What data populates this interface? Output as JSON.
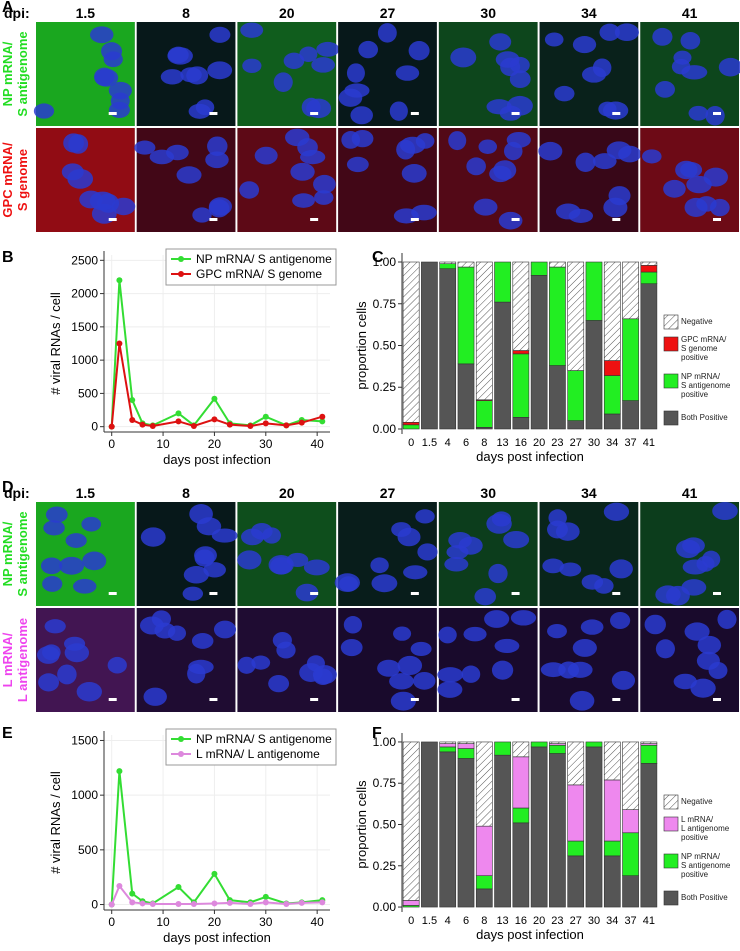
{
  "image_panels": [
    {
      "panel": "A",
      "dpi_label": "dpi:",
      "columns": [
        "1.5",
        "8",
        "20",
        "27",
        "30",
        "34",
        "41"
      ],
      "rows": [
        {
          "lines": [
            "NP mRNA/",
            "S antigenome"
          ],
          "color": "#22dd22"
        },
        {
          "lines": [
            "GPC mRNA/",
            "S genome"
          ],
          "color": "#ee1111"
        }
      ]
    },
    {
      "panel": "D",
      "dpi_label": "dpi:",
      "columns": [
        "1.5",
        "8",
        "20",
        "27",
        "30",
        "34",
        "41"
      ],
      "rows": [
        {
          "lines": [
            "NP mRNA/",
            "S antigenome"
          ],
          "color": "#22dd22"
        },
        {
          "lines": [
            "L mRNA/",
            "L antigenome"
          ],
          "color": "#ee44ee"
        }
      ]
    }
  ],
  "chart_data": [
    {
      "type": "line",
      "panel": "B",
      "xlabel": "days post infection",
      "ylabel": "# viral RNAs / cell",
      "x": [
        0,
        1.5,
        4,
        6,
        8,
        13,
        16,
        20,
        23,
        27,
        30,
        34,
        37,
        41
      ],
      "xlim": [
        -1.5,
        42.5
      ],
      "xticks": [
        0,
        10,
        20,
        30,
        40
      ],
      "ylim": [
        -80,
        2580
      ],
      "yticks": [
        0,
        500,
        1000,
        1500,
        2000,
        2500
      ],
      "grid": true,
      "legend": "top-right",
      "series": [
        {
          "name": "NP mRNA/ S antigenome",
          "color": "#33dd33",
          "values": [
            0,
            2200,
            400,
            50,
            20,
            200,
            20,
            420,
            50,
            20,
            150,
            20,
            100,
            80
          ]
        },
        {
          "name": "GPC mRNA/ S genome",
          "color": "#dd1111",
          "values": [
            0,
            1250,
            100,
            30,
            10,
            80,
            10,
            110,
            30,
            10,
            50,
            20,
            60,
            150
          ]
        }
      ]
    },
    {
      "type": "stacked-bar",
      "panel": "C",
      "xlabel": "days post infection",
      "ylabel": "proportion cells",
      "categories": [
        "0",
        "1.5",
        "4",
        "6",
        "8",
        "13",
        "16",
        "20",
        "23",
        "27",
        "30",
        "34",
        "37",
        "41"
      ],
      "ylim": [
        -0.03,
        1.03
      ],
      "yticks": [
        {
          "value": 0,
          "label": "0.00"
        },
        {
          "value": 0.25,
          "label": "0.25"
        },
        {
          "value": 0.5,
          "label": "0.50"
        },
        {
          "value": 0.75,
          "label": "0.75"
        },
        {
          "value": 1,
          "label": "1.00"
        }
      ],
      "legend": "right",
      "series": [
        {
          "name": "Both Positive",
          "color": "#555555",
          "values": [
            0,
            1,
            0.96,
            0.39,
            0.01,
            0.76,
            0.07,
            0.92,
            0.38,
            0.05,
            0.65,
            0.09,
            0.17,
            0.87
          ]
        },
        {
          "name": "NP mRNA/\nS antigenome\npositive",
          "color": "#22ee22",
          "values": [
            0.025,
            0,
            0.03,
            0.58,
            0.16,
            0.24,
            0.38,
            0.08,
            0.59,
            0.3,
            0.35,
            0.23,
            0.49,
            0.07
          ]
        },
        {
          "name": "GPC mRNA/\nS genome\npositive",
          "color": "#ee1111",
          "values": [
            0.015,
            0,
            0,
            0,
            0.005,
            0,
            0.02,
            0,
            0,
            0,
            0,
            0.09,
            0,
            0.04
          ]
        },
        {
          "name": "Negative",
          "color": "#ffffff",
          "pattern": "hatch",
          "values": [
            0.96,
            0,
            0.01,
            0.03,
            0.825,
            0,
            0.53,
            0,
            0.03,
            0.65,
            0,
            0.59,
            0.34,
            0.02
          ]
        }
      ]
    },
    {
      "type": "line",
      "panel": "E",
      "xlabel": "days post infection",
      "ylabel": "# viral RNAs / cell",
      "x": [
        0,
        1.5,
        4,
        6,
        8,
        13,
        16,
        20,
        23,
        27,
        30,
        34,
        37,
        41
      ],
      "xlim": [
        -1.5,
        42.5
      ],
      "xticks": [
        0,
        10,
        20,
        30,
        40
      ],
      "ylim": [
        -50,
        1550
      ],
      "yticks": [
        0,
        500,
        1000,
        1500
      ],
      "grid": true,
      "legend": "top-right",
      "series": [
        {
          "name": "NP mRNA/ S antigenome",
          "color": "#33dd33",
          "values": [
            0,
            1220,
            100,
            30,
            10,
            160,
            20,
            280,
            40,
            20,
            70,
            10,
            20,
            40
          ]
        },
        {
          "name": "L mRNA/ L antigenome",
          "color": "#dd88dd",
          "values": [
            0,
            170,
            20,
            10,
            5,
            5,
            5,
            10,
            15,
            5,
            20,
            5,
            15,
            20
          ]
        }
      ]
    },
    {
      "type": "stacked-bar",
      "panel": "F",
      "xlabel": "days post infection",
      "ylabel": "proportion cells",
      "categories": [
        "0",
        "1.5",
        "4",
        "6",
        "8",
        "13",
        "16",
        "20",
        "23",
        "27",
        "30",
        "34",
        "37",
        "41"
      ],
      "ylim": [
        -0.03,
        1.03
      ],
      "yticks": [
        {
          "value": 0,
          "label": "0.00"
        },
        {
          "value": 0.25,
          "label": "0.25"
        },
        {
          "value": 0.5,
          "label": "0.50"
        },
        {
          "value": 0.75,
          "label": "0.75"
        },
        {
          "value": 1,
          "label": "1.00"
        }
      ],
      "legend": "right",
      "series": [
        {
          "name": "Both Positive",
          "color": "#555555",
          "values": [
            0,
            1,
            0.94,
            0.9,
            0.11,
            0.92,
            0.51,
            0.97,
            0.93,
            0.31,
            0.97,
            0.31,
            0.19,
            0.87
          ]
        },
        {
          "name": "NP mRNA/\nS antigenome\npositive",
          "color": "#22ee22",
          "values": [
            0.01,
            0,
            0.03,
            0.06,
            0.08,
            0.08,
            0.09,
            0.03,
            0.05,
            0.09,
            0.03,
            0.09,
            0.26,
            0.11
          ]
        },
        {
          "name": "L mRNA/\nL antigenome\npositive",
          "color": "#ee88ee",
          "values": [
            0.03,
            0,
            0.02,
            0.03,
            0.3,
            0,
            0.31,
            0,
            0.01,
            0.34,
            0,
            0.37,
            0.14,
            0.01
          ]
        },
        {
          "name": "Negative",
          "color": "#ffffff",
          "pattern": "hatch",
          "values": [
            0.96,
            0,
            0.01,
            0.01,
            0.51,
            0,
            0.09,
            0,
            0.01,
            0.26,
            0,
            0.23,
            0.41,
            0.01
          ]
        }
      ]
    }
  ]
}
